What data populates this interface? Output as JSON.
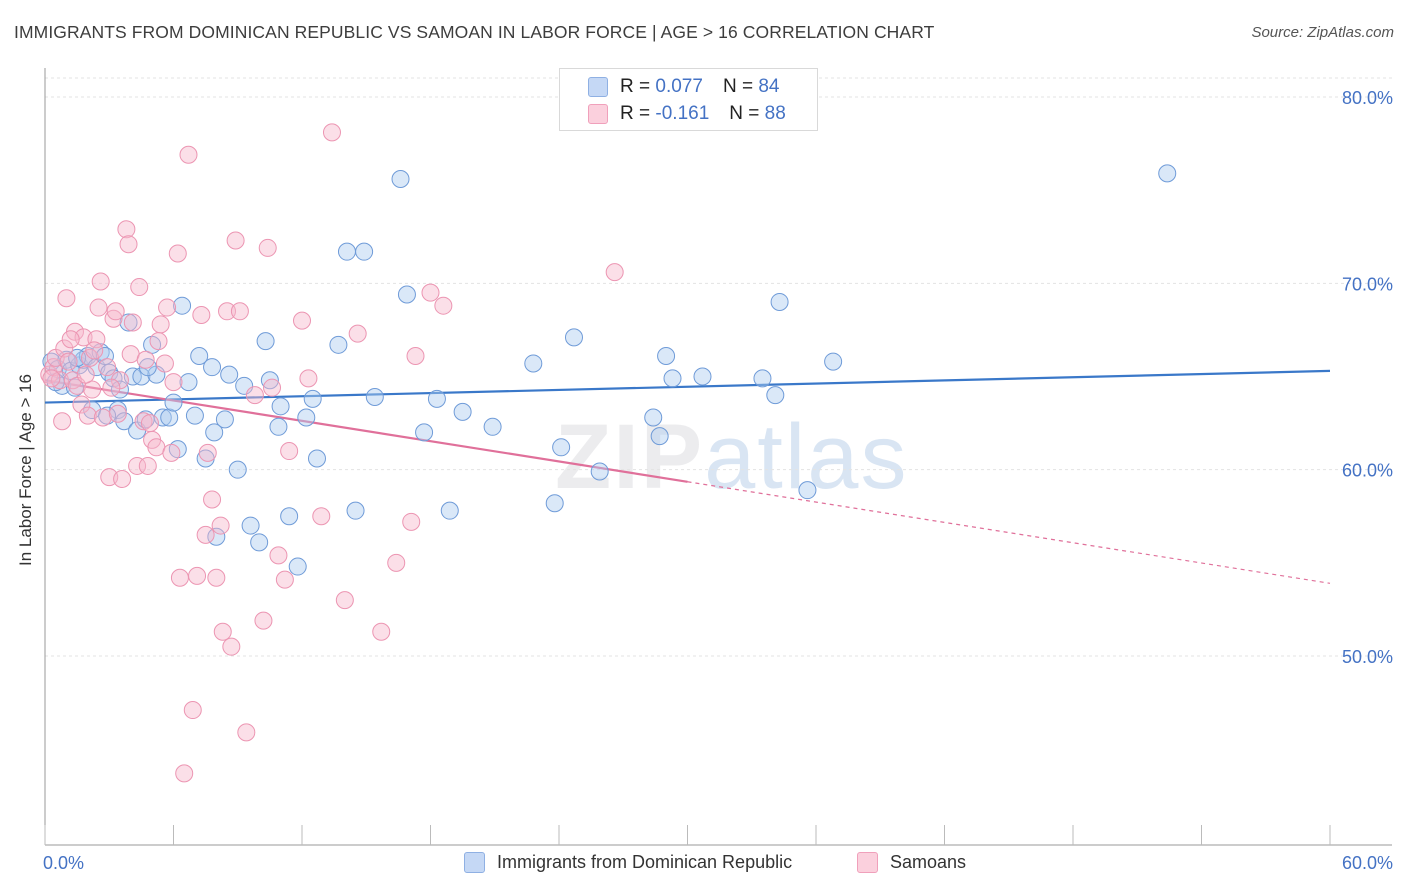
{
  "title": "IMMIGRANTS FROM DOMINICAN REPUBLIC VS SAMOAN IN LABOR FORCE | AGE > 16 CORRELATION CHART",
  "source": "Source: ZipAtlas.com",
  "watermark": {
    "zip": "ZIP",
    "atlas": "atlas"
  },
  "legend": {
    "r_label": "R =",
    "n_label": "N =",
    "rows": [
      {
        "r": "0.077",
        "n": "84",
        "fill": "#c5d8f5",
        "stroke": "#8fb0e3"
      },
      {
        "r": "-0.161",
        "n": "88",
        "fill": "#fbd0dd",
        "stroke": "#f0a0bb"
      }
    ]
  },
  "bottom_legend": [
    {
      "label": "Immigrants from Dominican Republic"
    },
    {
      "label": "Samoans"
    }
  ],
  "chart_data": {
    "type": "scatter",
    "title": "IMMIGRANTS FROM DOMINICAN REPUBLIC VS SAMOAN IN LABOR FORCE | AGE > 16 CORRELATION CHART",
    "xlabel": "",
    "ylabel": "In Labor Force | Age > 16",
    "xlim": [
      0,
      60
    ],
    "ylim": [
      41.5,
      82
    ],
    "x_tick_labels": [
      "0.0%",
      "60.0%"
    ],
    "y_ticks": [
      50,
      60,
      70,
      80
    ],
    "y_tick_labels": [
      "50.0%",
      "60.0%",
      "70.0%",
      "80.0%"
    ],
    "grid": true,
    "colors": {
      "blue": "#3a78c9",
      "pink": "#e0709a",
      "blue_fill": "#aecbf0",
      "pink_fill": "#f7b8cc",
      "tick_text": "#4472c4"
    },
    "series": [
      {
        "name": "Immigrants from Dominican Republic",
        "trend": {
          "x": [
            0,
            60
          ],
          "y": [
            63.6,
            65.3
          ]
        },
        "points": [
          [
            0.3,
            65.8
          ],
          [
            0.6,
            65.4
          ],
          [
            0.8,
            64.5
          ],
          [
            1.0,
            65.9
          ],
          [
            1.2,
            65.3
          ],
          [
            1.4,
            64.4
          ],
          [
            1.6,
            65.6
          ],
          [
            1.8,
            65.9
          ],
          [
            2.0,
            66.1
          ],
          [
            2.2,
            63.2
          ],
          [
            2.4,
            65.5
          ],
          [
            2.6,
            66.3
          ],
          [
            2.8,
            66.1
          ],
          [
            3.0,
            65.2
          ],
          [
            3.2,
            64.9
          ],
          [
            3.4,
            63.2
          ],
          [
            3.5,
            64.3
          ],
          [
            3.7,
            62.6
          ],
          [
            3.9,
            67.9
          ],
          [
            4.1,
            65.0
          ],
          [
            4.3,
            62.1
          ],
          [
            4.5,
            65.0
          ],
          [
            4.7,
            62.7
          ],
          [
            5.0,
            66.7
          ],
          [
            5.2,
            65.1
          ],
          [
            5.5,
            62.8
          ],
          [
            5.8,
            62.8
          ],
          [
            6.0,
            63.6
          ],
          [
            6.2,
            61.1
          ],
          [
            6.4,
            68.8
          ],
          [
            6.7,
            64.7
          ],
          [
            7.0,
            62.9
          ],
          [
            7.2,
            66.1
          ],
          [
            7.5,
            60.6
          ],
          [
            7.8,
            65.5
          ],
          [
            8.0,
            56.4
          ],
          [
            8.4,
            62.7
          ],
          [
            8.6,
            65.1
          ],
          [
            9.0,
            60.0
          ],
          [
            9.3,
            64.5
          ],
          [
            9.6,
            57.0
          ],
          [
            10.0,
            56.1
          ],
          [
            10.3,
            66.9
          ],
          [
            10.5,
            64.8
          ],
          [
            10.9,
            62.3
          ],
          [
            11.4,
            57.5
          ],
          [
            11.8,
            54.8
          ],
          [
            12.2,
            62.8
          ],
          [
            12.5,
            63.8
          ],
          [
            12.7,
            60.6
          ],
          [
            13.7,
            66.7
          ],
          [
            14.1,
            71.7
          ],
          [
            14.5,
            57.8
          ],
          [
            14.9,
            71.7
          ],
          [
            15.4,
            63.9
          ],
          [
            16.6,
            75.6
          ],
          [
            16.9,
            69.4
          ],
          [
            17.7,
            62.0
          ],
          [
            18.3,
            63.8
          ],
          [
            18.9,
            57.8
          ],
          [
            19.5,
            63.1
          ],
          [
            20.9,
            62.3
          ],
          [
            22.8,
            65.7
          ],
          [
            23.8,
            58.2
          ],
          [
            24.1,
            61.2
          ],
          [
            24.7,
            67.1
          ],
          [
            25.9,
            59.9
          ],
          [
            28.4,
            62.8
          ],
          [
            28.7,
            61.8
          ],
          [
            29.0,
            66.1
          ],
          [
            29.3,
            64.9
          ],
          [
            30.7,
            65.0
          ],
          [
            33.5,
            64.9
          ],
          [
            34.1,
            64.0
          ],
          [
            34.3,
            69.0
          ],
          [
            35.6,
            58.9
          ],
          [
            36.8,
            65.8
          ],
          [
            52.4,
            75.9
          ],
          [
            1.5,
            66.0
          ],
          [
            0.5,
            64.7
          ],
          [
            2.9,
            62.9
          ],
          [
            4.8,
            65.5
          ],
          [
            7.9,
            62.0
          ],
          [
            11.0,
            63.4
          ]
        ]
      },
      {
        "name": "Samoans",
        "trend": {
          "x": [
            0,
            60
          ],
          "y": [
            64.8,
            53.9
          ],
          "solid_until_x": 30
        },
        "points": [
          [
            0.2,
            65.1
          ],
          [
            0.4,
            65.5
          ],
          [
            0.5,
            66.0
          ],
          [
            0.7,
            64.8
          ],
          [
            0.9,
            66.5
          ],
          [
            1.0,
            69.2
          ],
          [
            1.1,
            65.8
          ],
          [
            1.3,
            64.8
          ],
          [
            1.4,
            67.4
          ],
          [
            1.5,
            64.5
          ],
          [
            1.7,
            63.5
          ],
          [
            1.8,
            67.1
          ],
          [
            2.0,
            62.9
          ],
          [
            2.1,
            66.0
          ],
          [
            2.2,
            64.3
          ],
          [
            2.4,
            67.0
          ],
          [
            2.5,
            68.7
          ],
          [
            2.6,
            70.1
          ],
          [
            2.7,
            62.8
          ],
          [
            2.9,
            65.5
          ],
          [
            3.0,
            59.6
          ],
          [
            3.2,
            68.1
          ],
          [
            3.3,
            68.5
          ],
          [
            3.4,
            63.0
          ],
          [
            3.5,
            64.8
          ],
          [
            3.6,
            59.5
          ],
          [
            3.8,
            72.9
          ],
          [
            3.9,
            72.1
          ],
          [
            4.0,
            66.2
          ],
          [
            4.1,
            67.9
          ],
          [
            4.3,
            60.2
          ],
          [
            4.4,
            69.8
          ],
          [
            4.6,
            62.6
          ],
          [
            4.7,
            65.9
          ],
          [
            4.8,
            60.2
          ],
          [
            5.0,
            61.6
          ],
          [
            5.2,
            61.2
          ],
          [
            5.4,
            67.8
          ],
          [
            5.6,
            65.7
          ],
          [
            5.7,
            68.7
          ],
          [
            5.9,
            60.9
          ],
          [
            6.0,
            64.7
          ],
          [
            6.2,
            71.6
          ],
          [
            6.3,
            54.2
          ],
          [
            6.5,
            43.7
          ],
          [
            6.7,
            76.9
          ],
          [
            6.9,
            47.1
          ],
          [
            7.1,
            54.3
          ],
          [
            7.3,
            68.3
          ],
          [
            7.5,
            56.5
          ],
          [
            7.6,
            60.9
          ],
          [
            7.8,
            58.4
          ],
          [
            8.0,
            54.2
          ],
          [
            8.2,
            57.0
          ],
          [
            8.3,
            51.3
          ],
          [
            8.5,
            68.5
          ],
          [
            8.7,
            50.5
          ],
          [
            8.9,
            72.3
          ],
          [
            9.1,
            68.5
          ],
          [
            9.4,
            45.9
          ],
          [
            9.8,
            64.0
          ],
          [
            10.2,
            51.9
          ],
          [
            10.4,
            71.9
          ],
          [
            10.6,
            64.4
          ],
          [
            10.9,
            55.4
          ],
          [
            11.2,
            54.1
          ],
          [
            11.4,
            61.0
          ],
          [
            12.0,
            68.0
          ],
          [
            12.3,
            64.9
          ],
          [
            12.9,
            57.5
          ],
          [
            13.4,
            78.1
          ],
          [
            14.0,
            53.0
          ],
          [
            14.6,
            67.3
          ],
          [
            15.7,
            51.3
          ],
          [
            16.4,
            55.0
          ],
          [
            17.1,
            57.2
          ],
          [
            17.3,
            66.1
          ],
          [
            18.0,
            69.5
          ],
          [
            18.6,
            68.8
          ],
          [
            26.6,
            70.6
          ],
          [
            0.8,
            62.6
          ],
          [
            1.9,
            65.1
          ],
          [
            3.1,
            64.4
          ],
          [
            4.9,
            62.5
          ],
          [
            5.3,
            66.9
          ],
          [
            2.3,
            66.4
          ],
          [
            1.2,
            67.0
          ],
          [
            0.3,
            64.9
          ]
        ]
      }
    ]
  }
}
